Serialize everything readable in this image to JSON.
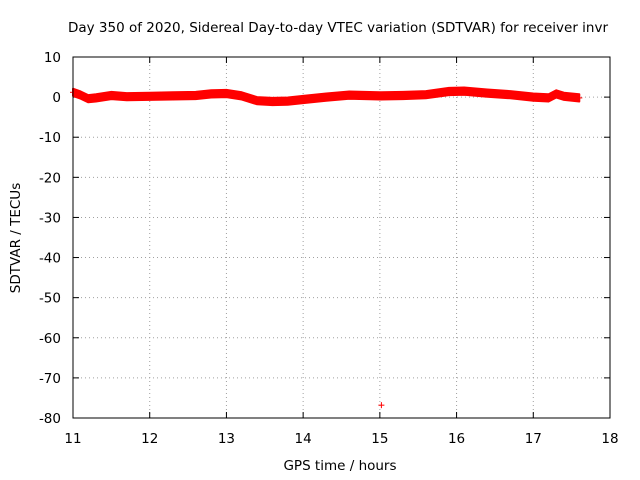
{
  "chart_data": {
    "type": "scatter",
    "title": "Day 350 of 2020, Sidereal Day-to-day VTEC variation (SDTVAR) for receiver invr",
    "xlabel": "GPS time / hours",
    "ylabel": "SDTVAR / TECUs",
    "xlim": [
      11,
      18
    ],
    "ylim": [
      -80,
      10
    ],
    "xticks": [
      11,
      12,
      13,
      14,
      15,
      16,
      17,
      18
    ],
    "yticks": [
      10,
      0,
      -10,
      -20,
      -30,
      -40,
      -50,
      -60,
      -70,
      -80
    ],
    "grid": true,
    "series_color": "#ff0000",
    "series": [
      {
        "name": "SDTVAR",
        "marker": "+",
        "band_halfwidth": 0.9,
        "x": [
          11.0,
          11.1,
          11.2,
          11.3,
          11.5,
          11.7,
          12.0,
          12.3,
          12.6,
          12.8,
          13.0,
          13.2,
          13.4,
          13.6,
          13.8,
          14.0,
          14.3,
          14.6,
          15.0,
          15.3,
          15.6,
          15.9,
          16.1,
          16.4,
          16.7,
          17.0,
          17.2,
          17.3,
          17.4,
          17.6
        ],
        "y": [
          1.2,
          0.5,
          -0.4,
          -0.2,
          0.4,
          0.1,
          0.2,
          0.3,
          0.4,
          0.8,
          0.9,
          0.3,
          -0.9,
          -1.1,
          -1.0,
          -0.6,
          0.0,
          0.5,
          0.3,
          0.4,
          0.6,
          1.4,
          1.5,
          1.0,
          0.6,
          0.0,
          -0.2,
          0.8,
          0.2,
          -0.2
        ]
      }
    ],
    "outliers": [
      {
        "x": 15.02,
        "y": -76.8
      }
    ]
  }
}
